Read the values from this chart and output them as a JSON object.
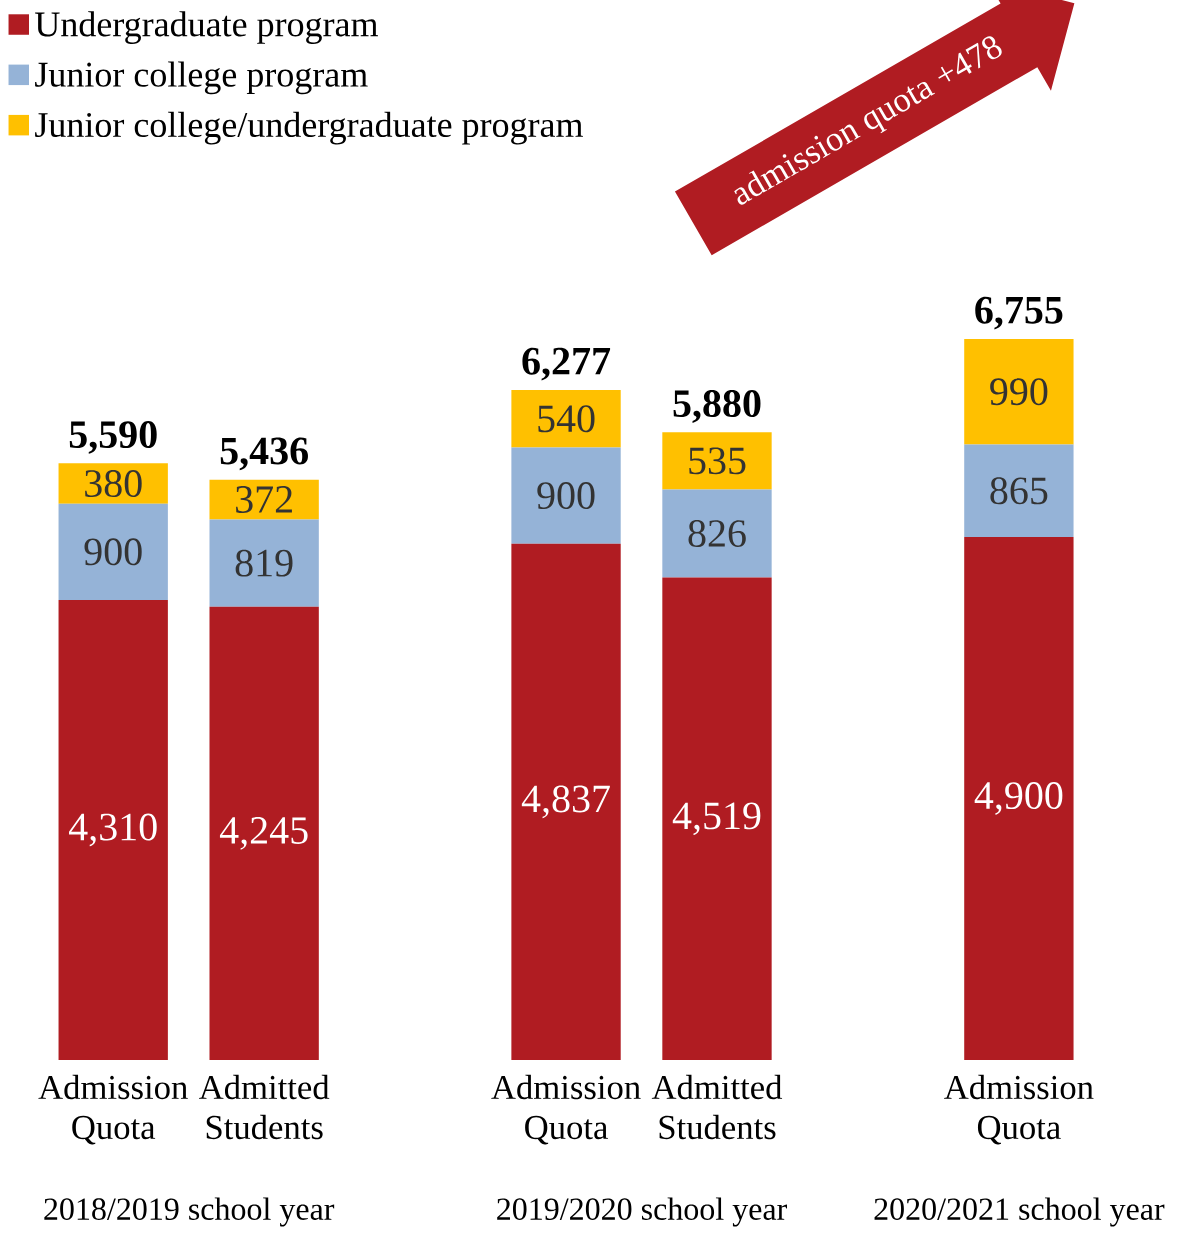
{
  "chart_data": {
    "type": "bar",
    "stacked": true,
    "legend": "top left",
    "categories": [
      "Admission Quota",
      "Admitted Students",
      null,
      "Admission Quota",
      "Admitted Students",
      null,
      "Admission Quota"
    ],
    "series": [
      {
        "name": "Undergraduate program",
        "color": "#b01c22",
        "values": [
          4310,
          4245,
          null,
          4837,
          4519,
          null,
          4900
        ],
        "value_labels": [
          "4,310",
          "4,245",
          null,
          "4,837",
          "4,519",
          null,
          "4,900"
        ]
      },
      {
        "name": "Junior college program",
        "color": "#95b3d7",
        "values": [
          900,
          819,
          null,
          900,
          826,
          null,
          865
        ],
        "value_labels": [
          "900",
          "819",
          null,
          "900",
          "826",
          null,
          "865"
        ]
      },
      {
        "name": "Junior college/undergraduate program",
        "color": "#ffc000",
        "values": [
          380,
          372,
          null,
          540,
          535,
          null,
          990
        ],
        "value_labels": [
          "380",
          "372",
          null,
          "540",
          "535",
          null,
          "990"
        ]
      }
    ],
    "totals": [
      "5,590",
      "5,436",
      null,
      "6,277",
      "5,880",
      null,
      "6,755"
    ],
    "annotations": [
      "2018/2019 school year",
      "2019/2020 school year",
      "2020/2021 school year",
      "admission quota +478"
    ]
  }
}
